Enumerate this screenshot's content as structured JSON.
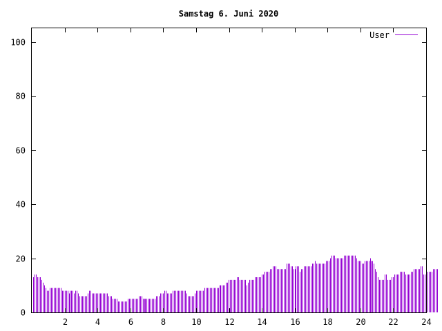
{
  "chart_data": {
    "type": "bar",
    "title": "Samstag 6. Juni 2020",
    "xlabel": "",
    "ylabel": "",
    "xlim": [
      0,
      24
    ],
    "ylim": [
      0,
      105
    ],
    "x_ticks": [
      2,
      4,
      6,
      8,
      10,
      12,
      14,
      16,
      18,
      20,
      22,
      24
    ],
    "x_tick_labels": [
      "2",
      "4",
      "6",
      "8",
      "10",
      "12",
      "14",
      "16",
      "18",
      "20",
      "22",
      "24"
    ],
    "y_ticks": [
      0,
      20,
      40,
      60,
      80,
      100
    ],
    "y_tick_labels": [
      "0",
      "20",
      "40",
      "60",
      "80",
      "100"
    ],
    "grid": false,
    "legend_position": "top-right",
    "series": [
      {
        "name": "User",
        "color": "#9400d3",
        "x_start": 0.0833,
        "x_step": 0.0833,
        "values": [
          13,
          14,
          14,
          13,
          13,
          13,
          12,
          11,
          10,
          9,
          8,
          8,
          9,
          9,
          9,
          9,
          9,
          9,
          9,
          9,
          9,
          8,
          8,
          8,
          8,
          8,
          7,
          8,
          8,
          8,
          7,
          8,
          8,
          7,
          6,
          6,
          6,
          6,
          6,
          6,
          7,
          8,
          8,
          7,
          7,
          7,
          7,
          7,
          7,
          7,
          7,
          7,
          7,
          7,
          7,
          6,
          6,
          6,
          5,
          5,
          5,
          5,
          4,
          4,
          4,
          4,
          4,
          4,
          4,
          5,
          5,
          5,
          5,
          5,
          5,
          5,
          5,
          6,
          6,
          6,
          5,
          5,
          5,
          5,
          5,
          5,
          5,
          5,
          5,
          5,
          6,
          6,
          6,
          7,
          7,
          7,
          8,
          8,
          7,
          7,
          7,
          7,
          8,
          8,
          8,
          8,
          8,
          8,
          8,
          8,
          8,
          8,
          7,
          6,
          6,
          6,
          6,
          6,
          7,
          8,
          8,
          8,
          8,
          8,
          8,
          9,
          9,
          9,
          9,
          9,
          9,
          9,
          9,
          9,
          9,
          9,
          10,
          10,
          10,
          10,
          10,
          11,
          11,
          12,
          12,
          12,
          12,
          12,
          12,
          13,
          13,
          12,
          12,
          12,
          12,
          12,
          10,
          11,
          12,
          12,
          12,
          12,
          13,
          13,
          13,
          13,
          13,
          14,
          14,
          15,
          15,
          15,
          15,
          16,
          16,
          17,
          17,
          17,
          16,
          16,
          16,
          16,
          16,
          16,
          16,
          18,
          18,
          18,
          17,
          17,
          16,
          16,
          17,
          17,
          17,
          15,
          16,
          16,
          17,
          17,
          17,
          17,
          17,
          17,
          18,
          18,
          19,
          18,
          18,
          18,
          18,
          18,
          18,
          18,
          19,
          19,
          19,
          20,
          21,
          21,
          21,
          20,
          20,
          20,
          20,
          20,
          20,
          21,
          21,
          21,
          21,
          21,
          21,
          21,
          21,
          21,
          20,
          19,
          19,
          19,
          18,
          18,
          19,
          19,
          19,
          19,
          20,
          19,
          19,
          18,
          16,
          15,
          13,
          12,
          12,
          12,
          12,
          14,
          14,
          12,
          12,
          12,
          13,
          13,
          14,
          14,
          14,
          14,
          15,
          15,
          15,
          15,
          14,
          14,
          14,
          14,
          15,
          15,
          16,
          16,
          16,
          16,
          16,
          17,
          17,
          14,
          14,
          14,
          15,
          15,
          15,
          15,
          16,
          16,
          16,
          16
        ]
      }
    ]
  }
}
